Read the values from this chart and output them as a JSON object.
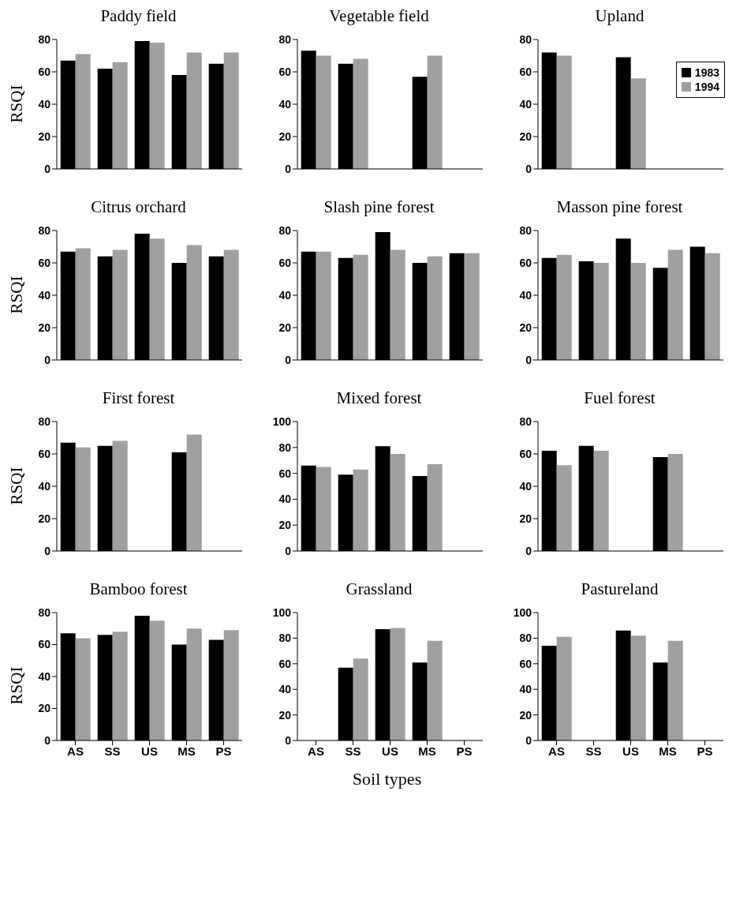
{
  "chart_data": [
    {
      "type": "bar",
      "title": "Paddy field",
      "ylabel": "RSQI",
      "categories": [
        null,
        null,
        null,
        null,
        null
      ],
      "ylim": [
        0,
        80
      ],
      "yticks": [
        0,
        20,
        40,
        60,
        80
      ],
      "tick_labels": "y",
      "series": [
        {
          "color": "#000000",
          "values": [
            67,
            62,
            79,
            58,
            65
          ]
        },
        {
          "color": "#a0a0a0",
          "values": [
            71,
            66,
            78,
            72,
            72
          ]
        }
      ]
    },
    {
      "type": "bar",
      "title": "Vegetable field",
      "categories": [
        null,
        null,
        null,
        null,
        null
      ],
      "ylim": [
        0,
        80
      ],
      "yticks": [
        0,
        20,
        40,
        60,
        80
      ],
      "tick_labels": "y",
      "series": [
        {
          "color": "#000000",
          "values": [
            73,
            65,
            null,
            57,
            null
          ]
        },
        {
          "color": "#a0a0a0",
          "values": [
            70,
            68,
            null,
            70,
            null
          ]
        }
      ]
    },
    {
      "type": "bar",
      "title": "Upland",
      "categories": [
        null,
        null,
        null,
        null,
        null
      ],
      "ylim": [
        0,
        80
      ],
      "yticks": [
        0,
        20,
        40,
        60,
        80
      ],
      "tick_labels": "y",
      "legend": "right",
      "series": [
        {
          "name": "1983",
          "color": "#000000",
          "values": [
            72,
            null,
            69,
            null,
            null
          ]
        },
        {
          "name": "1994",
          "color": "#a0a0a0",
          "values": [
            70,
            null,
            56,
            null,
            null
          ]
        }
      ]
    },
    {
      "type": "bar",
      "title": "Citrus orchard",
      "ylabel": "RSQI",
      "categories": [
        null,
        null,
        null,
        null,
        null
      ],
      "ylim": [
        0,
        80
      ],
      "yticks": [
        0,
        20,
        40,
        60,
        80
      ],
      "tick_labels": "y",
      "series": [
        {
          "color": "#000000",
          "values": [
            67,
            64,
            78,
            60,
            64
          ]
        },
        {
          "color": "#a0a0a0",
          "values": [
            69,
            68,
            75,
            71,
            68
          ]
        }
      ]
    },
    {
      "type": "bar",
      "title": "Slash pine forest",
      "categories": [
        null,
        null,
        null,
        null,
        null
      ],
      "ylim": [
        0,
        80
      ],
      "yticks": [
        0,
        20,
        40,
        60,
        80
      ],
      "tick_labels": "y",
      "series": [
        {
          "color": "#000000",
          "values": [
            67,
            63,
            79,
            60,
            66
          ]
        },
        {
          "color": "#a0a0a0",
          "values": [
            67,
            65,
            68,
            64,
            66
          ]
        }
      ]
    },
    {
      "type": "bar",
      "title": "Masson pine forest",
      "categories": [
        null,
        null,
        null,
        null,
        null
      ],
      "ylim": [
        0,
        80
      ],
      "yticks": [
        0,
        20,
        40,
        60,
        80
      ],
      "tick_labels": "y",
      "series": [
        {
          "color": "#000000",
          "values": [
            63,
            61,
            75,
            57,
            70
          ]
        },
        {
          "color": "#a0a0a0",
          "values": [
            65,
            60,
            60,
            68,
            66
          ]
        }
      ]
    },
    {
      "type": "bar",
      "title": "First forest",
      "ylabel": "RSQI",
      "categories": [
        null,
        null,
        null,
        null,
        null
      ],
      "ylim": [
        0,
        80
      ],
      "yticks": [
        0,
        20,
        40,
        60,
        80
      ],
      "tick_labels": "y",
      "series": [
        {
          "color": "#000000",
          "values": [
            67,
            65,
            null,
            61,
            null
          ]
        },
        {
          "color": "#a0a0a0",
          "values": [
            64,
            68,
            null,
            72,
            null
          ]
        }
      ]
    },
    {
      "type": "bar",
      "title": "Mixed forest",
      "categories": [
        null,
        null,
        null,
        null,
        null
      ],
      "ylim": [
        0,
        100
      ],
      "yticks": [
        0,
        20,
        40,
        60,
        80,
        100
      ],
      "tick_labels": "y",
      "series": [
        {
          "color": "#000000",
          "values": [
            66,
            59,
            81,
            58,
            null
          ]
        },
        {
          "color": "#a0a0a0",
          "values": [
            65,
            63,
            75,
            67,
            null
          ]
        }
      ]
    },
    {
      "type": "bar",
      "title": "Fuel forest",
      "categories": [
        null,
        null,
        null,
        null,
        null
      ],
      "ylim": [
        0,
        80
      ],
      "yticks": [
        0,
        20,
        40,
        60,
        80
      ],
      "tick_labels": "y",
      "series": [
        {
          "color": "#000000",
          "values": [
            62,
            65,
            null,
            58,
            null
          ]
        },
        {
          "color": "#a0a0a0",
          "values": [
            53,
            62,
            null,
            60,
            null
          ]
        }
      ]
    },
    {
      "type": "bar",
      "title": "Bamboo forest",
      "ylabel": "RSQI",
      "categories": [
        "AS",
        "SS",
        "US",
        "MS",
        "PS"
      ],
      "ylim": [
        0,
        80
      ],
      "yticks": [
        0,
        20,
        40,
        60,
        80
      ],
      "series": [
        {
          "color": "#000000",
          "values": [
            67,
            66,
            78,
            60,
            63
          ]
        },
        {
          "color": "#a0a0a0",
          "values": [
            64,
            68,
            75,
            70,
            69
          ]
        }
      ]
    },
    {
      "type": "bar",
      "title": "Grassland",
      "xlabel": "Soil types",
      "categories": [
        "AS",
        "SS",
        "US",
        "MS",
        "PS"
      ],
      "ylim": [
        0,
        100
      ],
      "yticks": [
        0,
        20,
        40,
        60,
        80,
        100
      ],
      "series": [
        {
          "color": "#000000",
          "values": [
            null,
            57,
            87,
            61,
            null
          ]
        },
        {
          "color": "#a0a0a0",
          "values": [
            null,
            64,
            88,
            78,
            null
          ]
        }
      ]
    },
    {
      "type": "bar",
      "title": "Pastureland",
      "categories": [
        "AS",
        "SS",
        "US",
        "MS",
        "PS"
      ],
      "ylim": [
        0,
        100
      ],
      "yticks": [
        0,
        20,
        40,
        60,
        80,
        100
      ],
      "series": [
        {
          "color": "#000000",
          "values": [
            74,
            null,
            86,
            61,
            null
          ]
        },
        {
          "color": "#a0a0a0",
          "values": [
            81,
            null,
            82,
            78,
            null
          ]
        }
      ]
    }
  ]
}
